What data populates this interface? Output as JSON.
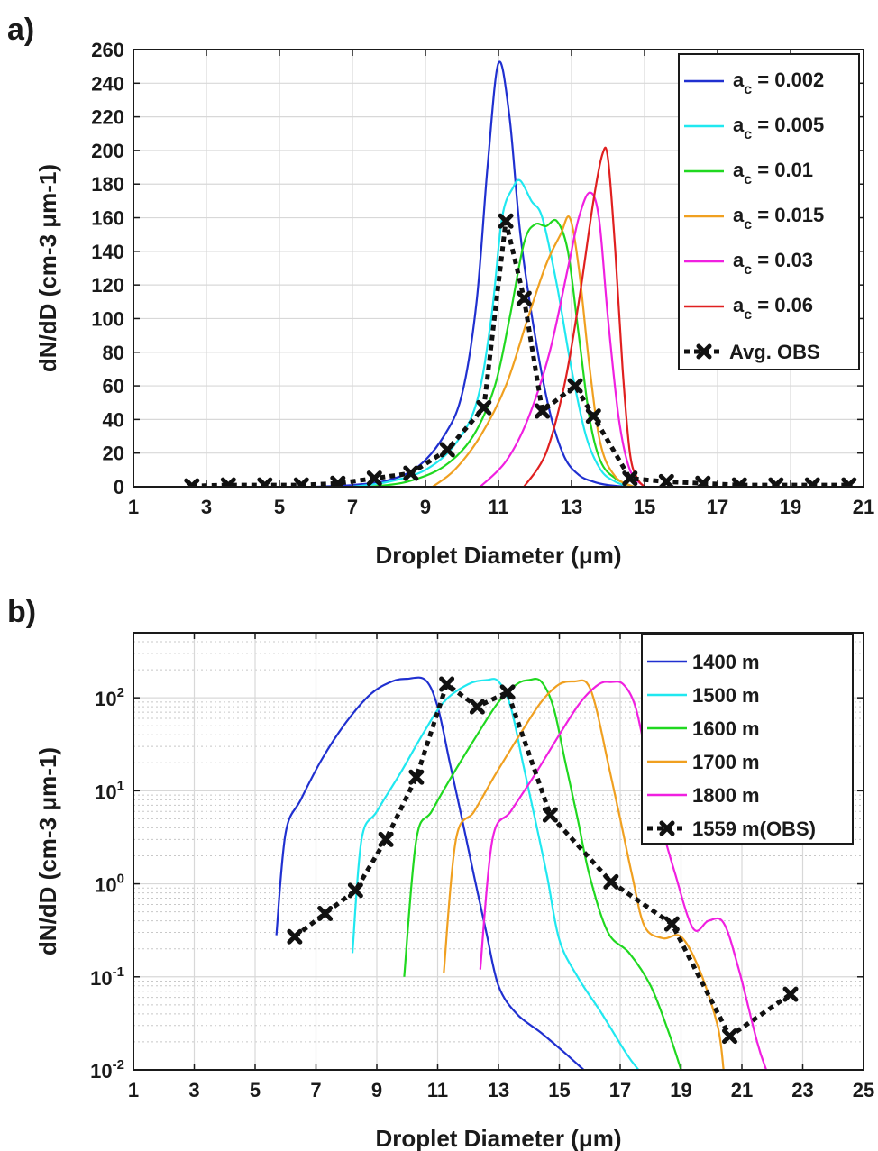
{
  "panel_labels": {
    "a": "a)",
    "b": "b)"
  },
  "chart_data": [
    {
      "type": "line",
      "panel": "a)",
      "xlabel": "Droplet Diameter (μm)",
      "ylabel": "dN/dD (cm-3 μm-1)",
      "xlim": [
        1,
        21
      ],
      "ylim": [
        0,
        260
      ],
      "xticks": [
        1,
        3,
        5,
        7,
        9,
        11,
        13,
        15,
        17,
        19,
        21
      ],
      "yticks": [
        0,
        20,
        40,
        60,
        80,
        100,
        120,
        140,
        160,
        180,
        200,
        220,
        240,
        260
      ],
      "yscale": "linear",
      "grid": true,
      "legend_position": "top-right",
      "series": [
        {
          "name": "a_c = 0.002",
          "label_prefix": "a",
          "label_sub": "c",
          "label_value": " = 0.002",
          "color": "#2030d0",
          "x": [
            6.0,
            7.0,
            8.0,
            8.8,
            9.5,
            10.0,
            10.4,
            10.7,
            11.0,
            11.3,
            11.6,
            12.0,
            12.4,
            12.8,
            13.2,
            13.6,
            14.0,
            14.5
          ],
          "y": [
            0,
            1,
            4,
            12,
            30,
            55,
            110,
            190,
            252,
            220,
            150,
            90,
            45,
            18,
            7,
            3,
            1,
            0
          ]
        },
        {
          "name": "a_c = 0.005",
          "label_prefix": "a",
          "label_sub": "c",
          "label_value": " = 0.005",
          "color": "#20e8f0",
          "x": [
            7.0,
            8.0,
            9.0,
            9.8,
            10.4,
            10.8,
            11.1,
            11.4,
            11.6,
            11.9,
            12.2,
            12.6,
            13.0,
            13.4,
            13.8,
            14.2,
            14.6
          ],
          "y": [
            0,
            3,
            10,
            25,
            50,
            100,
            160,
            178,
            182,
            170,
            160,
            120,
            70,
            30,
            10,
            3,
            0
          ]
        },
        {
          "name": "a_c = 0.01",
          "label_prefix": "a",
          "label_sub": "c",
          "label_value": " = 0.01",
          "color": "#20d820",
          "x": [
            7.5,
            8.5,
            9.5,
            10.3,
            10.9,
            11.3,
            11.7,
            12.0,
            12.3,
            12.6,
            12.9,
            13.2,
            13.5,
            13.8,
            14.2,
            14.7
          ],
          "y": [
            0,
            3,
            12,
            30,
            60,
            100,
            145,
            156,
            155,
            158,
            140,
            90,
            40,
            15,
            5,
            0
          ]
        },
        {
          "name": "a_c = 0.015",
          "label_prefix": "a",
          "label_sub": "c",
          "label_value": " = 0.015",
          "color": "#f0a020",
          "x": [
            9.2,
            9.8,
            10.5,
            11.2,
            11.8,
            12.3,
            12.7,
            12.95,
            13.2,
            13.5,
            13.8,
            14.2,
            14.7
          ],
          "y": [
            0,
            10,
            30,
            60,
            100,
            132,
            150,
            160,
            130,
            70,
            25,
            6,
            0
          ]
        },
        {
          "name": "a_c = 0.03",
          "label_prefix": "a",
          "label_sub": "c",
          "label_value": " = 0.03",
          "color": "#f020e0",
          "x": [
            10.5,
            11.2,
            11.8,
            12.4,
            12.9,
            13.2,
            13.5,
            13.75,
            14.0,
            14.3,
            14.6,
            15.0
          ],
          "y": [
            0,
            15,
            40,
            80,
            130,
            160,
            175,
            160,
            100,
            40,
            10,
            0
          ]
        },
        {
          "name": "a_c = 0.06",
          "label_prefix": "a",
          "label_sub": "c",
          "label_value": " = 0.06",
          "color": "#e02020",
          "x": [
            11.7,
            12.3,
            12.8,
            13.2,
            13.6,
            13.85,
            14.0,
            14.2,
            14.4,
            14.6,
            14.8,
            15.0
          ],
          "y": [
            0,
            20,
            60,
            110,
            170,
            198,
            195,
            140,
            70,
            20,
            5,
            0
          ]
        },
        {
          "name": "Avg. OBS",
          "label_prefix": "Avg. OBS",
          "label_sub": "",
          "label_value": "",
          "color": "#111111",
          "dashed": true,
          "markers": true,
          "x": [
            2.6,
            3.6,
            4.6,
            5.6,
            6.6,
            7.6,
            8.6,
            9.6,
            10.6,
            11.2,
            11.7,
            12.2,
            13.1,
            13.6,
            14.6,
            15.6,
            16.6,
            17.6,
            18.6,
            19.6,
            20.6
          ],
          "y": [
            0.5,
            1,
            1,
            1,
            2,
            5,
            8,
            22,
            47,
            158,
            112,
            45,
            60,
            42,
            5,
            3,
            2,
            1,
            1,
            1,
            1
          ]
        }
      ]
    },
    {
      "type": "line",
      "panel": "b)",
      "xlabel": "Droplet Diameter (μm)",
      "ylabel": "dN/dD (cm-3 μm-1)",
      "xlim": [
        1,
        25
      ],
      "ylim": [
        0.01,
        500
      ],
      "xticks": [
        1,
        3,
        5,
        7,
        9,
        11,
        13,
        15,
        17,
        19,
        21,
        23,
        25
      ],
      "yticks": [
        0.01,
        0.1,
        1,
        10,
        100
      ],
      "ytick_base": [
        "10",
        "10",
        "10",
        "10",
        "10"
      ],
      "ytick_exp": [
        "-2",
        "-1",
        "0",
        "1",
        "2"
      ],
      "yscale": "log",
      "grid": true,
      "legend_position": "top-right",
      "series": [
        {
          "name": "1400 m",
          "color": "#2030d0",
          "x": [
            5.7,
            6.0,
            6.5,
            7.2,
            8.0,
            8.8,
            9.5,
            10.0,
            10.6,
            11.0,
            11.4,
            11.8,
            12.2,
            12.6,
            13.0,
            13.6,
            14.4,
            15.2,
            15.8
          ],
          "y": [
            0.28,
            3.5,
            8,
            22,
            55,
            110,
            150,
            160,
            155,
            80,
            20,
            5,
            1.2,
            0.3,
            0.08,
            0.04,
            0.025,
            0.015,
            0.01
          ]
        },
        {
          "name": "1500 m",
          "color": "#20e8f0",
          "x": [
            8.2,
            8.5,
            9.0,
            9.8,
            10.5,
            11.2,
            12.0,
            12.6,
            13.0,
            13.4,
            13.8,
            14.2,
            14.6,
            15.0,
            15.6,
            16.4,
            17.2,
            17.6
          ],
          "y": [
            0.18,
            3,
            6,
            16,
            40,
            90,
            140,
            155,
            150,
            80,
            20,
            5,
            1.2,
            0.25,
            0.1,
            0.04,
            0.015,
            0.01
          ]
        },
        {
          "name": "1600 m",
          "color": "#20d820",
          "x": [
            9.9,
            10.3,
            10.8,
            11.5,
            12.3,
            13.0,
            13.6,
            14.0,
            14.4,
            14.8,
            15.2,
            15.6,
            16.0,
            16.6,
            17.3,
            18.0,
            18.6,
            19.0
          ],
          "y": [
            0.1,
            3,
            6,
            15,
            40,
            90,
            140,
            155,
            150,
            80,
            20,
            5,
            1.2,
            0.3,
            0.18,
            0.08,
            0.025,
            0.01
          ]
        },
        {
          "name": "1700 m",
          "color": "#f0a020",
          "x": [
            11.2,
            11.6,
            12.2,
            12.9,
            13.7,
            14.4,
            15.0,
            15.5,
            15.9,
            16.2,
            16.6,
            17.0,
            17.4,
            17.8,
            18.4,
            19.0,
            19.6,
            20.2,
            20.4
          ],
          "y": [
            0.11,
            3,
            6,
            15,
            40,
            90,
            140,
            150,
            145,
            80,
            20,
            5,
            1.2,
            0.35,
            0.26,
            0.27,
            0.12,
            0.03,
            0.01
          ]
        },
        {
          "name": "1800 m",
          "color": "#f020e0",
          "x": [
            12.4,
            12.8,
            13.4,
            14.2,
            15.0,
            15.7,
            16.3,
            16.7,
            17.1,
            17.5,
            17.9,
            18.3,
            18.8,
            19.4,
            19.9,
            20.4,
            20.9,
            21.5,
            21.8
          ],
          "y": [
            0.12,
            3,
            6,
            15,
            40,
            90,
            140,
            148,
            140,
            80,
            20,
            5,
            1.3,
            0.33,
            0.4,
            0.38,
            0.12,
            0.02,
            0.01
          ]
        },
        {
          "name": "1559 m(OBS)",
          "color": "#111111",
          "dashed": true,
          "markers": true,
          "x": [
            6.3,
            7.3,
            8.3,
            9.3,
            10.3,
            11.3,
            12.3,
            13.3,
            14.7,
            16.7,
            18.7,
            20.6,
            22.6
          ],
          "y": [
            0.27,
            0.48,
            0.85,
            3.0,
            14,
            140,
            80,
            115,
            5.5,
            1.05,
            0.37,
            0.023,
            0.065
          ]
        }
      ]
    }
  ]
}
